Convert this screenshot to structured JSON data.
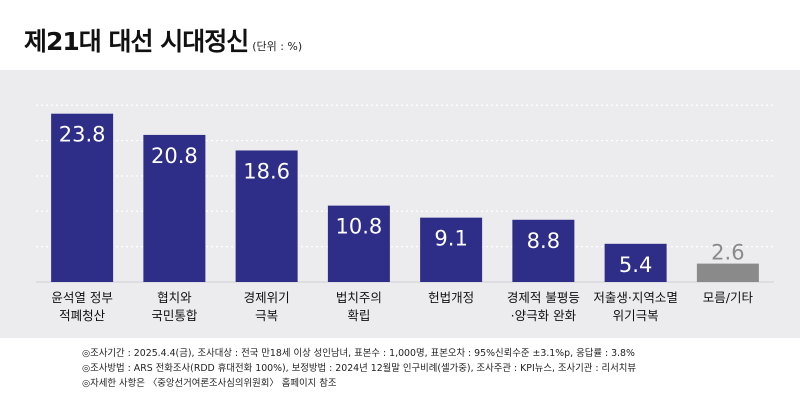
{
  "title": "제21대 대선 시대정신",
  "unit": "(단위 : %)",
  "colors": {
    "bar": "#2e2d88",
    "bar_muted": "#8a8a8a",
    "label_on_bar": "#ffffff",
    "label_muted": "#8a8a8a",
    "panel": "#ececef",
    "grid": "#ffffff"
  },
  "chart_data": {
    "type": "bar",
    "categories": [
      [
        "윤석열 정부",
        "적폐청산"
      ],
      [
        "협치와",
        "국민통합"
      ],
      [
        "경제위기",
        "극복"
      ],
      [
        "법치주의",
        "확립"
      ],
      [
        "헌법개정"
      ],
      [
        "경제적 불평등",
        "·양극화 완화"
      ],
      [
        "저출생·지역소멸",
        "위기극복"
      ],
      [
        "모름/기타"
      ]
    ],
    "values": [
      23.8,
      20.8,
      18.6,
      10.8,
      9.1,
      8.8,
      5.4,
      2.6
    ],
    "value_labels": [
      "23.8",
      "20.8",
      "18.6",
      "10.8",
      "9.1",
      "8.8",
      "5.4",
      "2.6"
    ],
    "muted_index": 7,
    "ylim": [
      0,
      28
    ],
    "gridlines": [
      5,
      10,
      15,
      20,
      25
    ],
    "grid": true,
    "grid_style": "dashed"
  },
  "notes": [
    "◎조사기간 : 2025.4.4(금), 조사대상 : 전국 만18세 이상 성인남녀, 표본수 : 1,000명, 표본오차 : 95%신뢰수준 ±3.1%p, 응답률 : 3.8%",
    "◎조사방법 : ARS 전화조사(RDD 휴대전화 100%), 보정방법 : 2024년 12월말 인구비례(셀가중), 조사주관 : KPI뉴스, 조사기관 : 리서치뷰",
    "◎자세한 사항은 〈중앙선거여론조사심의위원회〉 홈페이지 참조"
  ]
}
